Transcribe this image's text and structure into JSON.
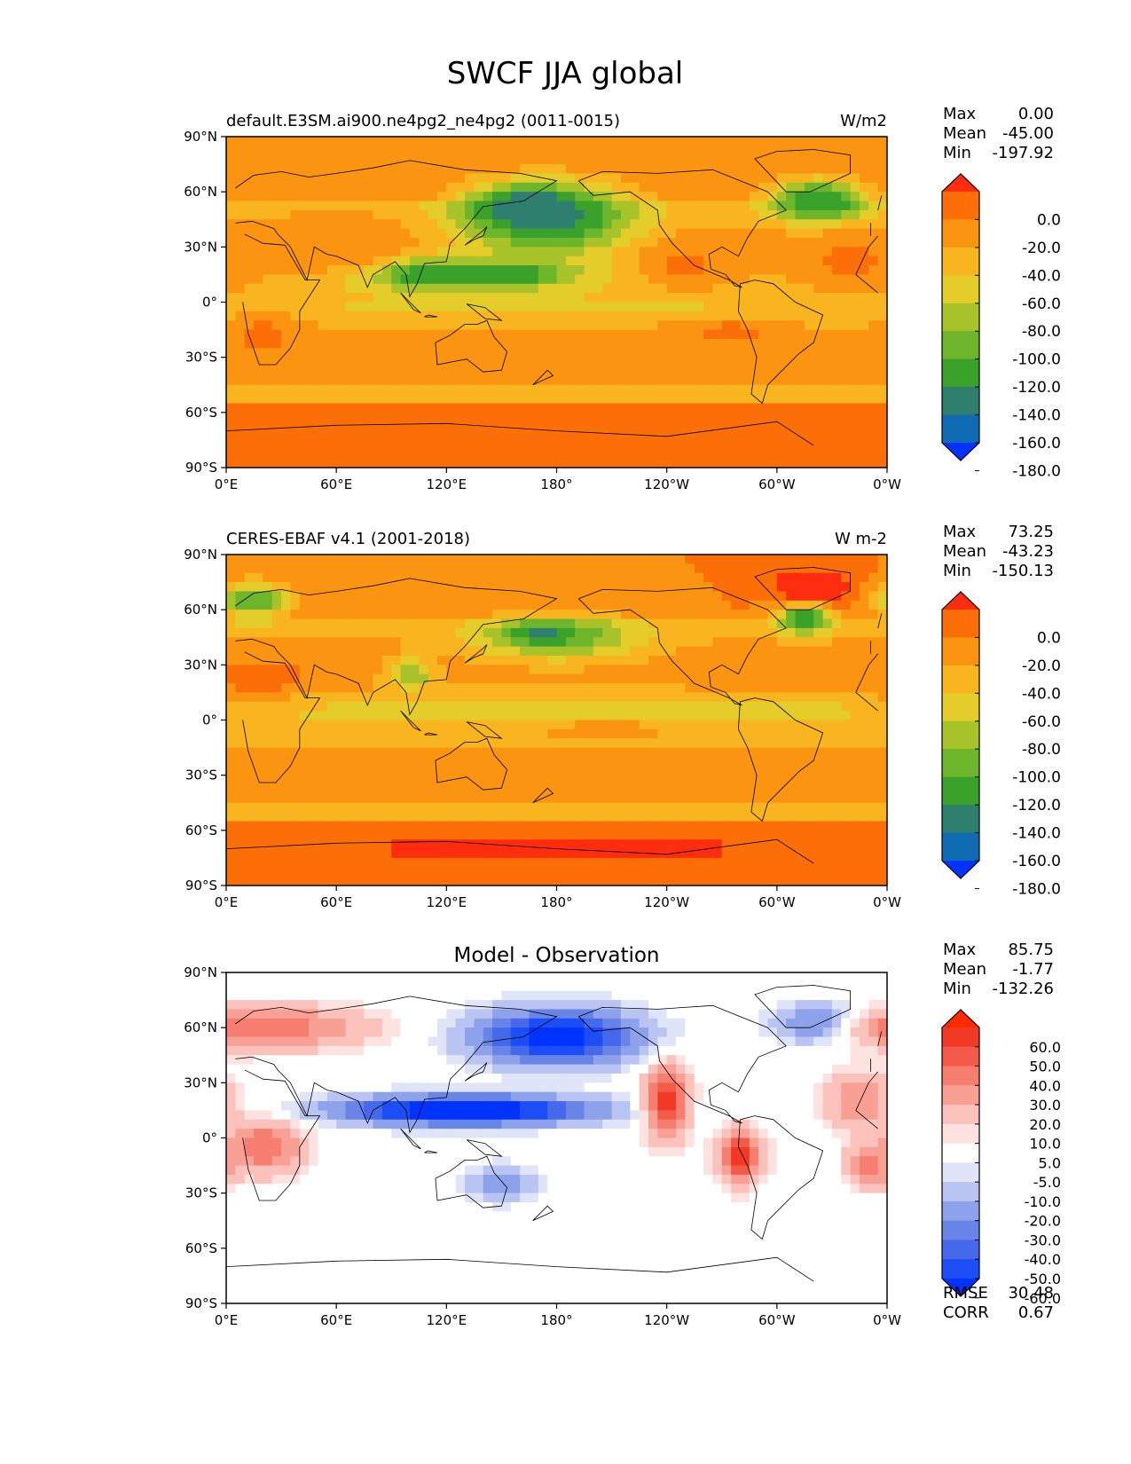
{
  "figure_title": "SWCF JJA global",
  "lat_ticks": [
    "90°N",
    "60°N",
    "30°N",
    "0°",
    "30°S",
    "60°S",
    "90°S"
  ],
  "lon_ticks": [
    "0°E",
    "60°E",
    "120°E",
    "180°",
    "120°W",
    "60°W",
    "0°W"
  ],
  "stat_labels": {
    "max": "Max",
    "mean": "Mean",
    "min": "Min",
    "rmse": "RMSE",
    "corr": "CORR"
  },
  "palettes": {
    "absolute": [
      "#0033ff",
      "#0f6cb3",
      "#2e7f6e",
      "#3aa22a",
      "#6db52a",
      "#a8c22a",
      "#e4cc2a",
      "#f9b51f",
      "#fb9410",
      "#fc6e07",
      "#ff2d0f"
    ],
    "difference": [
      "#0033ff",
      "#1d4df4",
      "#4569ea",
      "#6784e6",
      "#8ea2ec",
      "#b9c4f2",
      "#dfe4f8",
      "#ffffff",
      "#fde2e0",
      "#fbc2bc",
      "#f9a095",
      "#f67e70",
      "#f45a4a",
      "#f13a26",
      "#ff2a00"
    ]
  },
  "panels": [
    {
      "title_left": "default.E3SM.ai900.ne4pg2_ne4pg2 (0011-0015)",
      "title_center": "",
      "units": "W/m2",
      "stats": {
        "max": "0.00",
        "mean": "-45.00",
        "min": "-197.92"
      },
      "colorbar_labels": [
        "0.0",
        "-20.0",
        "-40.0",
        "-60.0",
        "-80.0",
        "-100.0",
        "-120.0",
        "-140.0",
        "-160.0",
        "-180.0"
      ]
    },
    {
      "title_left": "CERES-EBAF v4.1 (2001-2018)",
      "title_center": "",
      "units": "W m-2",
      "stats": {
        "max": "73.25",
        "mean": "-43.23",
        "min": "-150.13"
      },
      "colorbar_labels": [
        "0.0",
        "-20.0",
        "-40.0",
        "-60.0",
        "-80.0",
        "-100.0",
        "-120.0",
        "-140.0",
        "-160.0",
        "-180.0"
      ]
    },
    {
      "title_left": "",
      "title_center": "Model - Observation",
      "units": "",
      "stats": {
        "max": "85.75",
        "mean": "-1.77",
        "min": "-132.26",
        "rmse": "30.48",
        "corr": "0.67"
      },
      "colorbar_labels": [
        "60.0",
        "50.0",
        "40.0",
        "30.0",
        "20.0",
        "10.0",
        "5.0",
        "-5.0",
        "-10.0",
        "-20.0",
        "-30.0",
        "-40.0",
        "-50.0",
        "-60.0"
      ]
    }
  ],
  "chart_data": [
    {
      "type": "heatmap",
      "title": "default.E3SM.ai900.ne4pg2_ne4pg2 (0011-0015)",
      "units": "W/m2",
      "xlim": [
        0,
        360
      ],
      "ylim": [
        -90,
        90
      ],
      "levels": [
        -180,
        -160,
        -140,
        -120,
        -100,
        -80,
        -60,
        -40,
        -20,
        0
      ],
      "features": [
        {
          "lon": 165,
          "lat": 52,
          "value": -185,
          "rlon": 28,
          "rlat": 10
        },
        {
          "lon": 175,
          "lat": 45,
          "value": -150,
          "rlon": 48,
          "rlat": 20
        },
        {
          "lon": 110,
          "lat": 15,
          "value": -180,
          "rlon": 22,
          "rlat": 5
        },
        {
          "lon": 155,
          "lat": 15,
          "value": -175,
          "rlon": 20,
          "rlat": 4
        },
        {
          "lon": 130,
          "lat": 15,
          "value": -130,
          "rlon": 62,
          "rlat": 10
        },
        {
          "lon": 325,
          "lat": 55,
          "value": -170,
          "rlon": 14,
          "rlat": 6
        },
        {
          "lon": 322,
          "lat": 55,
          "value": -135,
          "rlon": 28,
          "rlat": 12
        },
        {
          "lon": 250,
          "lat": 20,
          "value": -15,
          "rlon": 25,
          "rlat": 12
        },
        {
          "lon": 20,
          "lat": -15,
          "value": -15,
          "rlon": 20,
          "rlat": 18
        },
        {
          "lon": 340,
          "lat": 20,
          "value": -15,
          "rlon": 25,
          "rlat": 15
        },
        {
          "lon": 275,
          "lat": -15,
          "value": -15,
          "rlon": 30,
          "rlat": 12
        },
        {
          "lon": 60,
          "lat": 30,
          "value": -20,
          "rlon": 30,
          "rlat": 15
        },
        {
          "lon": 180,
          "lat": -72,
          "value": -15,
          "rlon": 200,
          "rlat": 15
        },
        {
          "lon": 180,
          "lat": -3,
          "value": -65,
          "rlon": 180,
          "rlat": 6
        }
      ]
    },
    {
      "type": "heatmap",
      "title": "CERES-EBAF v4.1 (2001-2018)",
      "units": "W m-2",
      "xlim": [
        0,
        360
      ],
      "ylim": [
        -90,
        90
      ],
      "levels": [
        -180,
        -160,
        -140,
        -120,
        -100,
        -80,
        -60,
        -40,
        -20,
        0
      ],
      "features": [
        {
          "lon": 180,
          "lat": 45,
          "value": -120,
          "rlon": 45,
          "rlat": 12
        },
        {
          "lon": 170,
          "lat": 48,
          "value": -150,
          "rlon": 15,
          "rlat": 5
        },
        {
          "lon": 320,
          "lat": 72,
          "value": 40,
          "rlon": 20,
          "rlat": 10
        },
        {
          "lon": 315,
          "lat": 55,
          "value": -140,
          "rlon": 15,
          "rlat": 8
        },
        {
          "lon": 15,
          "lat": 65,
          "value": -120,
          "rlon": 20,
          "rlat": 10
        },
        {
          "lon": 100,
          "lat": 25,
          "value": -110,
          "rlon": 12,
          "rlat": 8
        },
        {
          "lon": 285,
          "lat": 5,
          "value": -110,
          "rlon": 30,
          "rlat": 5
        },
        {
          "lon": 205,
          "lat": -3,
          "value": -15,
          "rlon": 50,
          "rlat": 5
        },
        {
          "lon": 20,
          "lat": 22,
          "value": -10,
          "rlon": 30,
          "rlat": 12
        },
        {
          "lon": 180,
          "lat": -70,
          "value": 5,
          "rlon": 220,
          "rlat": 10
        },
        {
          "lon": 180,
          "lat": 5,
          "value": -70,
          "rlon": 200,
          "rlat": 8
        }
      ]
    },
    {
      "type": "heatmap",
      "title": "Model - Observation",
      "units": "",
      "xlim": [
        0,
        360
      ],
      "ylim": [
        -90,
        90
      ],
      "levels": [
        -60,
        -50,
        -40,
        -30,
        -20,
        -10,
        -5,
        5,
        10,
        20,
        30,
        40,
        50,
        60
      ],
      "rmse": 30.48,
      "corr": 0.67,
      "features": [
        {
          "lon": 130,
          "lat": 15,
          "value": -80,
          "rlon": 70,
          "rlat": 8
        },
        {
          "lon": 180,
          "lat": 55,
          "value": -70,
          "rlon": 45,
          "rlat": 15
        },
        {
          "lon": 325,
          "lat": 62,
          "value": -60,
          "rlon": 25,
          "rlat": 10
        },
        {
          "lon": 240,
          "lat": 20,
          "value": 55,
          "rlon": 12,
          "rlat": 20
        },
        {
          "lon": 280,
          "lat": -10,
          "value": 55,
          "rlon": 12,
          "rlat": 15
        },
        {
          "lon": 20,
          "lat": 60,
          "value": 40,
          "rlon": 55,
          "rlat": 12
        },
        {
          "lon": 20,
          "lat": -5,
          "value": 40,
          "rlon": 22,
          "rlat": 15
        },
        {
          "lon": 345,
          "lat": 20,
          "value": 30,
          "rlon": 20,
          "rlat": 15
        },
        {
          "lon": 350,
          "lat": -15,
          "value": 40,
          "rlon": 12,
          "rlat": 12
        },
        {
          "lon": 150,
          "lat": -25,
          "value": -25,
          "rlon": 20,
          "rlat": 10
        }
      ]
    }
  ]
}
